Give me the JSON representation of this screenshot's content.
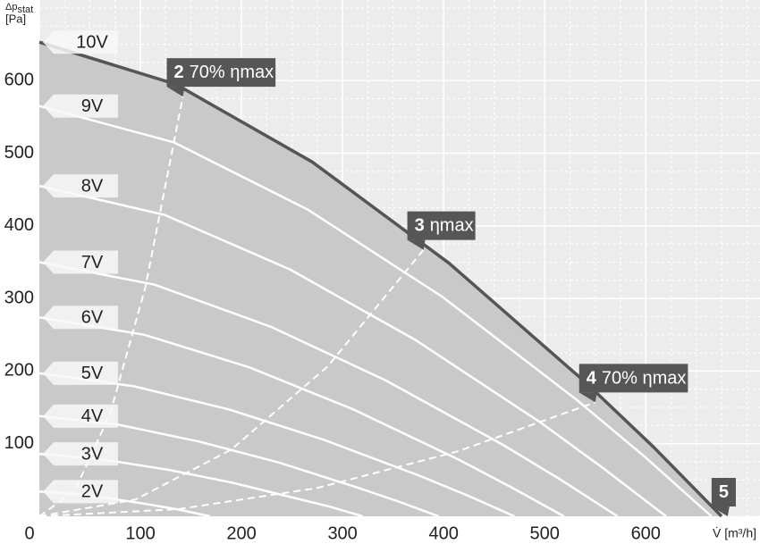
{
  "chart_data": {
    "type": "line",
    "ylabel": "Δp",
    "ylabel_sub": "stat",
    "ylabel_unit": "[Pa]",
    "xlabel": "V̇ [m³/h]",
    "xlim": [
      0,
      713
    ],
    "ylim": [
      0,
      711
    ],
    "xticks": [
      0,
      100,
      200,
      300,
      400,
      500,
      600
    ],
    "yticks": [
      100,
      200,
      300,
      400,
      500,
      600
    ],
    "grid": true,
    "minor_grid_step": 25,
    "series": [
      {
        "name": "10V",
        "color": "#555555",
        "x": [
          0,
          135,
          270,
          405,
          540,
          608,
          675
        ],
        "values": [
          653,
          595,
          488,
          349,
          185,
          95,
          0
        ]
      },
      {
        "name": "9V",
        "color": "#ffffff",
        "x": [
          0,
          133,
          266,
          399,
          532,
          599,
          665
        ],
        "values": [
          565,
          515,
          422,
          302,
          160,
          82,
          0
        ]
      },
      {
        "name": "8V",
        "color": "#ffffff",
        "x": [
          0,
          124,
          248,
          372,
          496,
          558,
          620
        ],
        "values": [
          455,
          415,
          340,
          243,
          129,
          66,
          0
        ]
      },
      {
        "name": "7V",
        "color": "#ffffff",
        "x": [
          0,
          114,
          229,
          343,
          458,
          515,
          572
        ],
        "values": [
          350,
          319,
          261,
          187,
          99,
          51,
          0
        ]
      },
      {
        "name": "6V",
        "color": "#ffffff",
        "x": [
          0,
          104,
          208,
          311,
          415,
          467,
          519
        ],
        "values": [
          274,
          250,
          205,
          147,
          78,
          40,
          0
        ]
      },
      {
        "name": "5V",
        "color": "#ffffff",
        "x": [
          0,
          94,
          188,
          282,
          376,
          423,
          470
        ],
        "values": [
          197,
          179,
          147,
          105,
          56,
          29,
          0
        ]
      },
      {
        "name": "4V",
        "color": "#ffffff",
        "x": [
          0,
          79,
          158,
          237,
          316,
          356,
          395
        ],
        "values": [
          138,
          126,
          103,
          74,
          39,
          20,
          0
        ]
      },
      {
        "name": "3V",
        "color": "#ffffff",
        "x": [
          0,
          64,
          128,
          192,
          256,
          288,
          320
        ],
        "values": [
          86,
          78,
          64,
          46,
          24,
          13,
          0
        ]
      },
      {
        "name": "2V",
        "color": "#ffffff",
        "x": [
          0,
          34,
          68,
          101,
          135,
          152,
          169
        ],
        "values": [
          34,
          31,
          25,
          18,
          10,
          5,
          0
        ]
      }
    ],
    "efficiency_lines": [
      {
        "number": "2",
        "name": "70% ηmax",
        "x": [
          0,
          35,
          70,
          105,
          142
        ],
        "values": [
          0,
          35,
          141,
          316,
          578
        ]
      },
      {
        "number": "3",
        "name": "ηmax",
        "x": [
          0,
          95,
          190,
          285,
          380
        ],
        "values": [
          0,
          23,
          92,
          206,
          367
        ]
      },
      {
        "number": "4",
        "name": "70% ηmax",
        "x": [
          0,
          138,
          275,
          413,
          550
        ],
        "values": [
          0,
          10,
          39,
          89,
          157
        ]
      }
    ],
    "end_point": {
      "number": "5",
      "x": 681,
      "value": 0
    }
  }
}
